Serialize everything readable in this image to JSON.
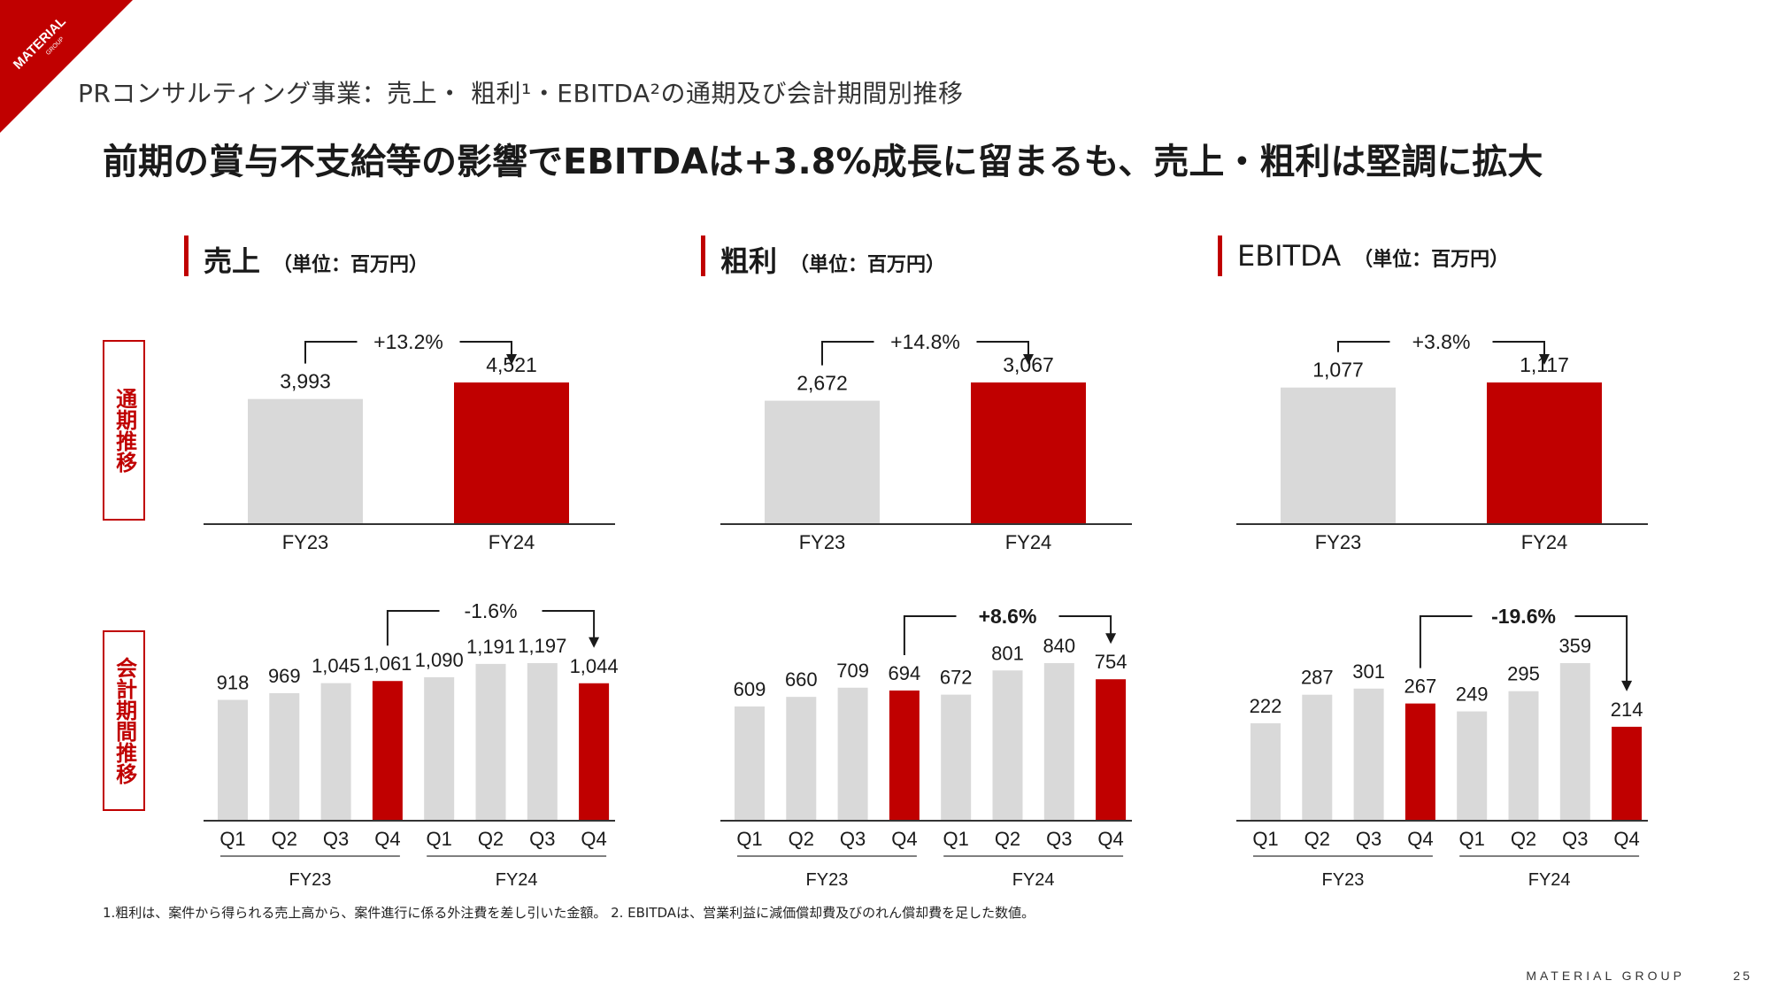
{
  "brand_corner": {
    "line1": "MATERIAL",
    "line2": "GROUP",
    "color": "#c00000"
  },
  "slide_title": "PRコンサルティング事業：売上・ 粗利¹・EBITDA²の通期及び会計期間別推移",
  "headline": "前期の賞与不支給等の影響でEBITDAは+3.8%成長に留まるも、売上・粗利は堅調に拡大",
  "row_labels": {
    "annual": "通期推移",
    "quarterly": "会計期間推移"
  },
  "sections": [
    {
      "name": "売上",
      "unit": "（単位：百万円）"
    },
    {
      "name": "粗利",
      "unit": "（単位：百万円）"
    },
    {
      "name": "EBITDA",
      "unit": "（単位：百万円）"
    }
  ],
  "colors": {
    "accent": "#c00000",
    "gray_bar": "#d9d9d9",
    "axis": "#333333"
  },
  "chart_data": [
    {
      "type": "bar",
      "title": "売上 通期推移",
      "categories": [
        "FY23",
        "FY24"
      ],
      "values": [
        3993,
        4521
      ],
      "labels": [
        "3,993",
        "4,521"
      ],
      "change": "+13.2%",
      "highlight": [
        1
      ]
    },
    {
      "type": "bar",
      "title": "粗利 通期推移",
      "categories": [
        "FY23",
        "FY24"
      ],
      "values": [
        2672,
        3067
      ],
      "labels": [
        "2,672",
        "3,067"
      ],
      "change": "+14.8%",
      "highlight": [
        1
      ]
    },
    {
      "type": "bar",
      "title": "EBITDA 通期推移",
      "categories": [
        "FY23",
        "FY24"
      ],
      "values": [
        1077,
        1117
      ],
      "labels": [
        "1,077",
        "1,117"
      ],
      "change": "+3.8%",
      "highlight": [
        1
      ]
    },
    {
      "type": "bar",
      "title": "売上 会計期間推移",
      "categories": [
        "Q1",
        "Q2",
        "Q3",
        "Q4",
        "Q1",
        "Q2",
        "Q3",
        "Q4"
      ],
      "groups": [
        "FY23",
        "FY24"
      ],
      "values": [
        918,
        969,
        1045,
        1061,
        1090,
        1191,
        1197,
        1044
      ],
      "labels": [
        "918",
        "969",
        "1,045",
        "1,061",
        "1,090",
        "1,191",
        "1,197",
        "1,044"
      ],
      "change": "-1.6%",
      "highlight": [
        3,
        7
      ]
    },
    {
      "type": "bar",
      "title": "粗利 会計期間推移",
      "categories": [
        "Q1",
        "Q2",
        "Q3",
        "Q4",
        "Q1",
        "Q2",
        "Q3",
        "Q4"
      ],
      "groups": [
        "FY23",
        "FY24"
      ],
      "values": [
        609,
        660,
        709,
        694,
        672,
        801,
        840,
        754
      ],
      "labels": [
        "609",
        "660",
        "709",
        "694",
        "672",
        "801",
        "840",
        "754"
      ],
      "change": "+8.6%",
      "highlight": [
        3,
        7
      ]
    },
    {
      "type": "bar",
      "title": "EBITDA 会計期間推移",
      "categories": [
        "Q1",
        "Q2",
        "Q3",
        "Q4",
        "Q1",
        "Q2",
        "Q3",
        "Q4"
      ],
      "groups": [
        "FY23",
        "FY24"
      ],
      "values": [
        222,
        287,
        301,
        267,
        249,
        295,
        359,
        214
      ],
      "labels": [
        "222",
        "287",
        "301",
        "267",
        "249",
        "295",
        "359",
        "214"
      ],
      "change": "-19.6%",
      "highlight": [
        3,
        7
      ]
    }
  ],
  "footnote": "1.粗利は、案件から得られる売上高から、案件進行に係る外注費を差し引いた金額。 2. EBITDAは、営業利益に減価償却費及びのれん償却費を足した数値。",
  "footer": {
    "brand": "MATERIAL GROUP",
    "page": "25"
  }
}
